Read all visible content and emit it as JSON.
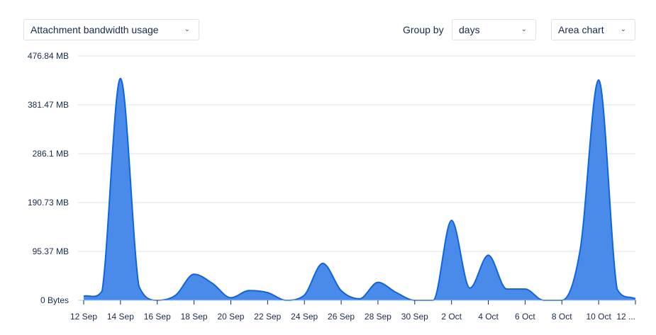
{
  "controls": {
    "metric": "Attachment bandwidth usage",
    "group_by_label": "Group by",
    "group_by": "days",
    "chart_type": "Area chart"
  },
  "colors": {
    "fill": "#4a8ae8",
    "stroke": "#0c66e4",
    "grid": "#dfe1e6"
  },
  "chart_data": {
    "type": "area",
    "ylim": [
      0,
      476.84
    ],
    "y_ticks": [
      "0 Bytes",
      "95.37 MB",
      "190.73 MB",
      "286.1 MB",
      "381.47 MB",
      "476.84 MB"
    ],
    "y_unit": "MB",
    "x_ticks": [
      "12 Sep",
      "14 Sep",
      "16 Sep",
      "18 Sep",
      "20 Sep",
      "22 Sep",
      "24 Sep",
      "26 Sep",
      "28 Sep",
      "30 Sep",
      "2 Oct",
      "4 Oct",
      "6 Oct",
      "8 Oct",
      "10 Oct",
      "12 ..."
    ],
    "x": [
      "12 Sep",
      "13 Sep",
      "14 Sep",
      "15 Sep",
      "16 Sep",
      "17 Sep",
      "18 Sep",
      "19 Sep",
      "20 Sep",
      "21 Sep",
      "22 Sep",
      "23 Sep",
      "24 Sep",
      "25 Sep",
      "26 Sep",
      "27 Sep",
      "28 Sep",
      "29 Sep",
      "30 Sep",
      "1 Oct",
      "2 Oct",
      "3 Oct",
      "4 Oct",
      "5 Oct",
      "6 Oct",
      "7 Oct",
      "8 Oct",
      "9 Oct",
      "10 Oct",
      "11 Oct",
      "12 Oct"
    ],
    "values": [
      8,
      18,
      433,
      28,
      0,
      10,
      51,
      33,
      5,
      19,
      15,
      0,
      10,
      72,
      19,
      3,
      35,
      15,
      0,
      0,
      156,
      24,
      88,
      22,
      22,
      0,
      0,
      100,
      430,
      22,
      3
    ],
    "grid": true,
    "legend": "none"
  }
}
